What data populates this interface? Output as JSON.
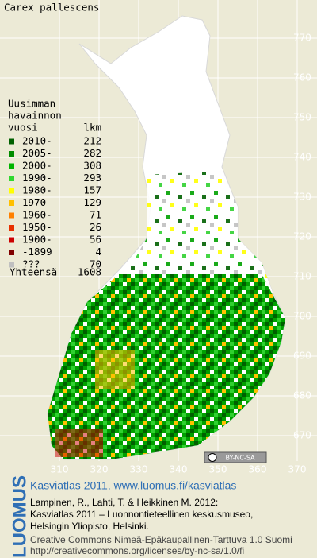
{
  "title": "Carex pallescens",
  "legend": {
    "heading": [
      "Uusimman",
      "havainnon"
    ],
    "col_period": "vuosi",
    "col_count": "lkm",
    "rows": [
      {
        "label": "2010-",
        "count": 212,
        "color": "#006000"
      },
      {
        "label": "2005-",
        "count": 282,
        "color": "#008c00"
      },
      {
        "label": "2000-",
        "count": 308,
        "color": "#00b400"
      },
      {
        "label": "1990-",
        "count": 293,
        "color": "#30d830"
      },
      {
        "label": "1980-",
        "count": 157,
        "color": "#ffff00"
      },
      {
        "label": "1970-",
        "count": 129,
        "color": "#ffc000"
      },
      {
        "label": "1960-",
        "count": 71,
        "color": "#ff8000"
      },
      {
        "label": "1950-",
        "count": 26,
        "color": "#e83000"
      },
      {
        "label": "1900-",
        "count": 56,
        "color": "#cc0000"
      },
      {
        "label": "-1899",
        "count": 4,
        "color": "#800000"
      },
      {
        "label": "???",
        "count": 70,
        "color": "#c0c0c0"
      }
    ],
    "total_label": "Yhteensä",
    "total": 1608
  },
  "y_grid_labels": [
    770,
    760,
    750,
    740,
    730,
    720,
    710,
    700,
    690,
    680,
    670
  ],
  "x_grid_labels": [
    310,
    320,
    330,
    340,
    350,
    360,
    370
  ],
  "license_badge": "BY-NC-SA",
  "footer": {
    "brand": "LUOMUS",
    "link": "Kasviatlas 2011, www.luomus.fi/kasviatlas",
    "citation": [
      "Lampinen, R., Lahti, T. & Heikkinen M. 2012:",
      "Kasviatlas 2011 – Luonnontieteellinen keskusmuseo,",
      "Helsingin Yliopisto, Helsinki."
    ],
    "license": [
      "Creative Commons Nimeä-Epäkaupallinen-Tarttuva 1.0 Suomi",
      "http://creativecommons.org/licenses/by-nc-sa/1.0/fi"
    ]
  }
}
